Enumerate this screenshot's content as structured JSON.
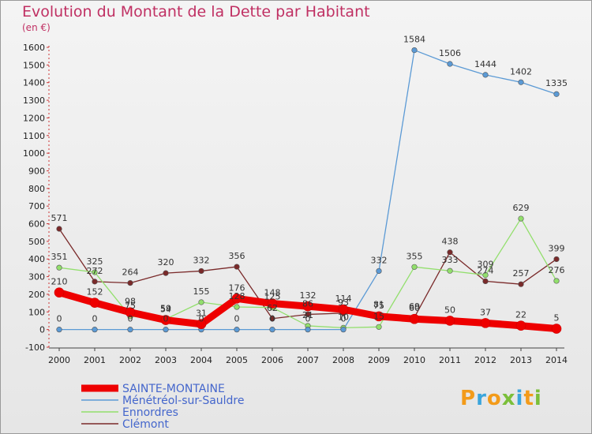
{
  "title": "Evolution du Montant de la Dette par Habitant",
  "unit": "(en €)",
  "logo": {
    "letters": [
      "P",
      "r",
      "o",
      "x",
      "i",
      "t",
      "i"
    ],
    "colors": [
      "#f39b1a",
      "#3aa5dc",
      "#f39b1a",
      "#7bbf3a",
      "#3aa5dc",
      "#f39b1a",
      "#7bbf3a"
    ]
  },
  "chart_data": {
    "type": "line",
    "title": "Evolution du Montant de la Dette par Habitant",
    "ylabel": "(en €)",
    "ylim": [
      -100,
      1600
    ],
    "yticks": [
      -100,
      0,
      100,
      200,
      300,
      400,
      500,
      600,
      700,
      800,
      900,
      1000,
      1100,
      1200,
      1300,
      1400,
      1500,
      1600
    ],
    "x": [
      "2000",
      "2001",
      "2002",
      "2003",
      "2004",
      "2005",
      "2006",
      "2007",
      "2008",
      "2009",
      "2010",
      "2011",
      "2012",
      "2013",
      "2014"
    ],
    "legend_position": "bottom-left",
    "grid": false,
    "series": [
      {
        "name": "SAINTE-MONTAINE",
        "color": "#ee0000",
        "values": [
          210,
          152,
          98,
          54,
          31,
          176,
          148,
          132,
          114,
          75,
          60,
          50,
          37,
          22,
          5
        ],
        "labels": [
          "210",
          "152",
          "98",
          "54",
          "31",
          "176",
          "148",
          "132",
          "114",
          "75",
          "60",
          "50",
          "37",
          "22",
          "5"
        ]
      },
      {
        "name": "Ménétréol-sur-Sauldre",
        "color": "#5b9ad5",
        "values": [
          0,
          0,
          0,
          0,
          0,
          0,
          0,
          0,
          0,
          332,
          1584,
          1506,
          1444,
          1402,
          1335
        ],
        "labels": [
          "0",
          "0",
          "0",
          "0",
          "0",
          "0",
          "0",
          "0",
          "0",
          "332",
          "1584",
          "1506",
          "1444",
          "1402",
          "1335"
        ]
      },
      {
        "name": "Ennordres",
        "color": "#92df6c",
        "values": [
          351,
          325,
          75,
          59,
          155,
          128,
          125,
          21,
          10,
          15,
          355,
          333,
          309,
          629,
          276
        ],
        "labels": [
          "351",
          "325",
          "75",
          "59",
          "155",
          "128",
          "125",
          "21",
          "10",
          "15",
          "355",
          "333",
          "309",
          "629",
          "276"
        ]
      },
      {
        "name": "Clémont",
        "color": "#7a2a2a",
        "values": [
          571,
          272,
          264,
          320,
          332,
          356,
          62,
          86,
          93,
          81,
          69,
          438,
          274,
          257,
          399
        ],
        "labels": [
          "571",
          "272",
          "264",
          "320",
          "332",
          "356",
          "62",
          "86",
          "93",
          "81",
          "69",
          "438",
          "274",
          "257",
          "399"
        ]
      }
    ]
  }
}
